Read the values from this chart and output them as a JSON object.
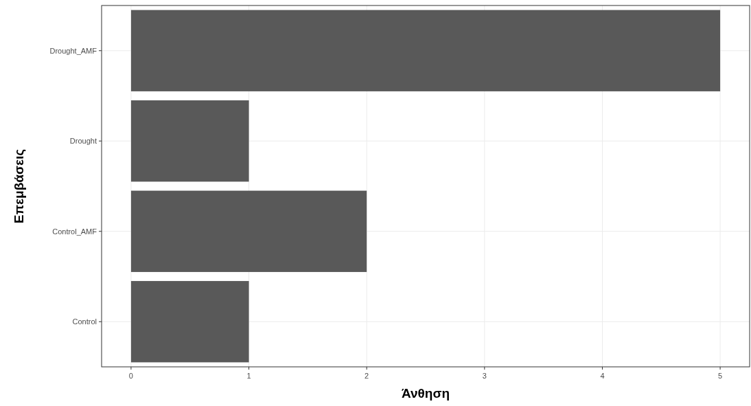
{
  "chart_data": {
    "type": "bar",
    "orientation": "horizontal",
    "xlabel": "Άνθηση",
    "ylabel": "Επεμβάσεις",
    "categories": [
      "Drought_AMF",
      "Drought",
      "Control_AMF",
      "Control"
    ],
    "values": [
      5,
      1,
      2,
      1
    ],
    "color": "#595959",
    "xlim": [
      -0.25,
      5.25
    ],
    "xticks": [
      0,
      1,
      2,
      3,
      4,
      5
    ],
    "grid": true
  }
}
